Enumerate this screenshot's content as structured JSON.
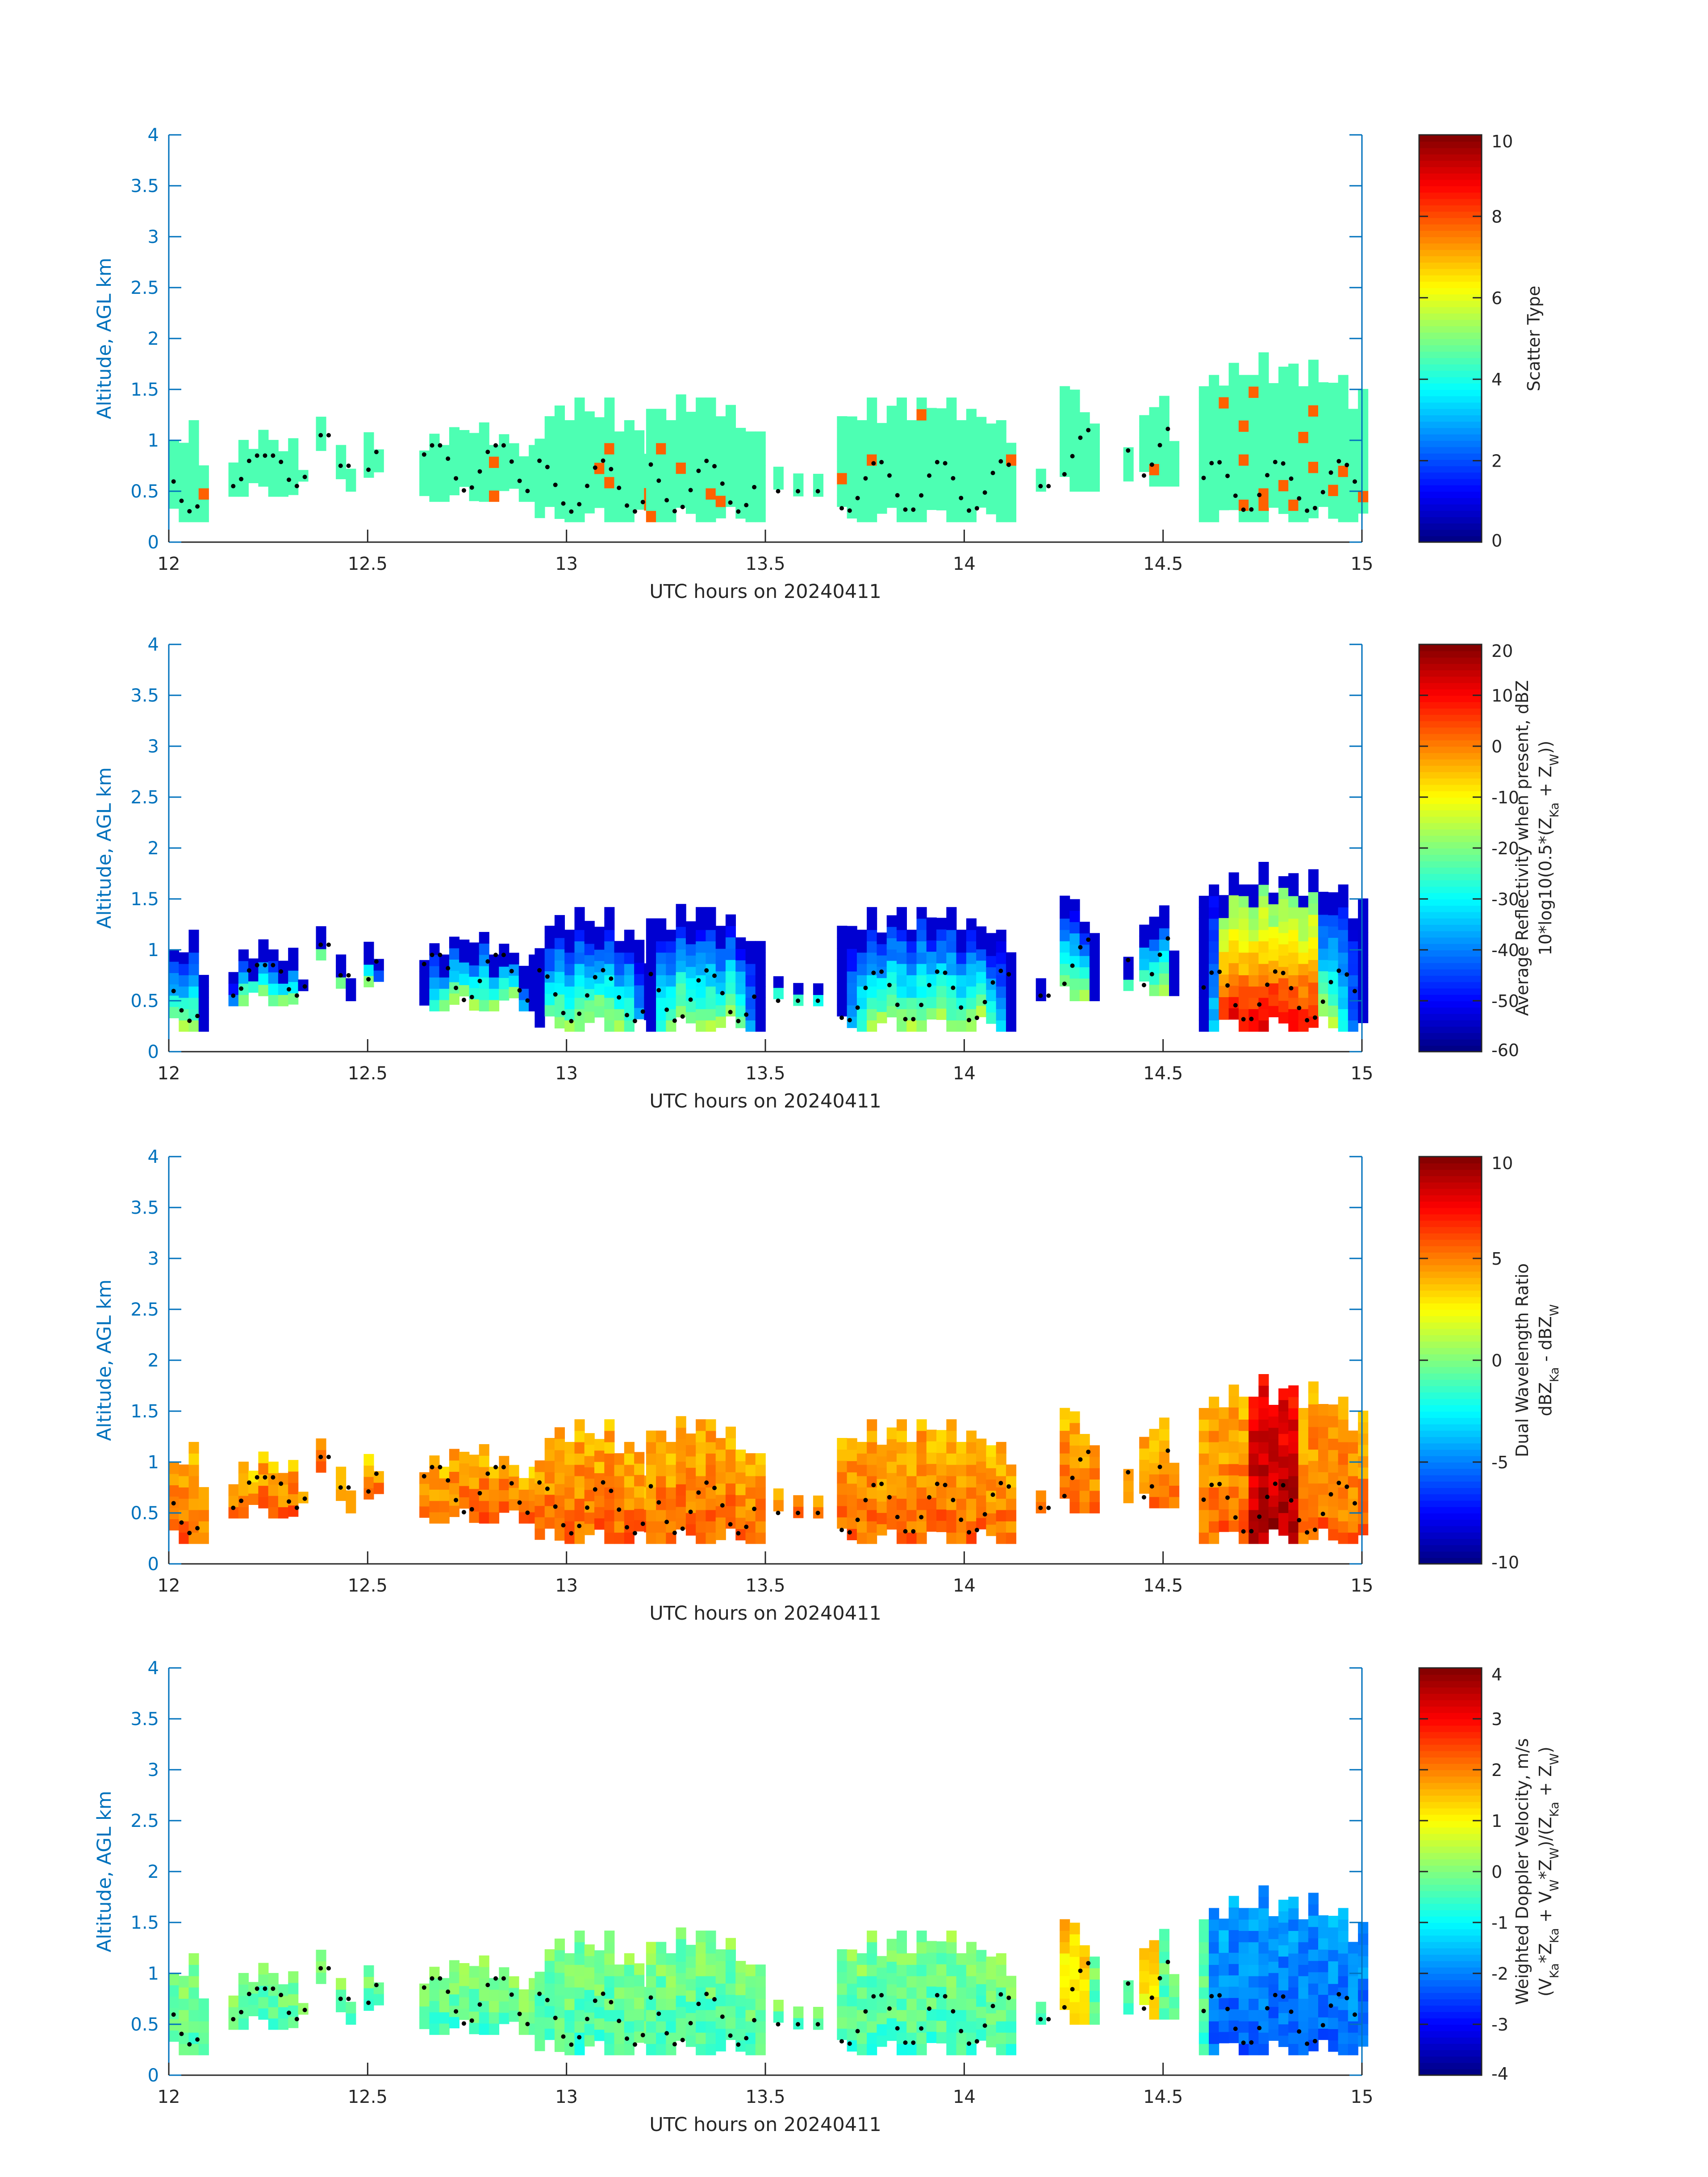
{
  "chart_data": [
    {
      "type": "heatmap",
      "xlabel": "UTC hours on 20240411",
      "ylabel": "Altitude, AGL km",
      "xlim": [
        12,
        15
      ],
      "ylim": [
        0,
        4
      ],
      "xticks": [
        12,
        12.5,
        13,
        13.5,
        14,
        14.5,
        15
      ],
      "yticks": [
        0,
        0.5,
        1,
        1.5,
        2,
        2.5,
        3,
        3.5,
        4
      ],
      "colorbar": {
        "label_lines": [
          "Scatter Type"
        ],
        "clim": [
          0,
          10
        ],
        "ticks": [
          0,
          2,
          4,
          6,
          8,
          10
        ],
        "colormap": "jet"
      }
    },
    {
      "type": "heatmap",
      "xlabel": "UTC hours on 20240411",
      "ylabel": "Altitude, AGL km",
      "xlim": [
        12,
        15
      ],
      "ylim": [
        0,
        4
      ],
      "xticks": [
        12,
        12.5,
        13,
        13.5,
        14,
        14.5,
        15
      ],
      "yticks": [
        0,
        0.5,
        1,
        1.5,
        2,
        2.5,
        3,
        3.5,
        4
      ],
      "colorbar": {
        "label_lines": [
          "Average Reflectivity when present, dBZ",
          "10*log10(0.5*(Z_Ka + Z_W))"
        ],
        "clim": [
          -60,
          20
        ],
        "ticks": [
          -60,
          -50,
          -40,
          -30,
          -20,
          -10,
          0,
          10,
          20
        ],
        "colormap": "jet"
      }
    },
    {
      "type": "heatmap",
      "xlabel": "UTC hours on 20240411",
      "ylabel": "Altitude, AGL km",
      "xlim": [
        12,
        15
      ],
      "ylim": [
        0,
        4
      ],
      "xticks": [
        12,
        12.5,
        13,
        13.5,
        14,
        14.5,
        15
      ],
      "yticks": [
        0,
        0.5,
        1,
        1.5,
        2,
        2.5,
        3,
        3.5,
        4
      ],
      "colorbar": {
        "label_lines": [
          "Dual Wavelength Ratio",
          "dBZ_Ka - dBZ_W"
        ],
        "clim": [
          -10,
          10
        ],
        "ticks": [
          -10,
          -5,
          0,
          5,
          10
        ],
        "colormap": "jet"
      }
    },
    {
      "type": "heatmap",
      "xlabel": "UTC hours on 20240411",
      "ylabel": "Altitude, AGL km",
      "xlim": [
        12,
        15
      ],
      "ylim": [
        0,
        4
      ],
      "xticks": [
        12,
        12.5,
        13,
        13.5,
        14,
        14.5,
        15
      ],
      "yticks": [
        0,
        0.5,
        1,
        1.5,
        2,
        2.5,
        3,
        3.5,
        4
      ],
      "colorbar": {
        "label_lines": [
          "Weighted Doppler Velocity, m/s",
          "(V_Ka*Z_Ka + V_W*Z_W)/(Z_Ka + Z_W)"
        ],
        "clim": [
          -4,
          4
        ],
        "ticks": [
          -4,
          -3,
          -2,
          -1,
          0,
          1,
          2,
          3,
          4
        ],
        "colormap": "jet"
      }
    }
  ],
  "cloud_segments": [
    {
      "t0": 12.0,
      "t1": 12.09,
      "bottom": 0.2,
      "top": 1.05
    },
    {
      "t0": 12.15,
      "t1": 12.35,
      "bottom": 0.45,
      "top": 0.95
    },
    {
      "t0": 12.37,
      "t1": 12.41,
      "bottom": 0.9,
      "top": 1.15
    },
    {
      "t0": 12.42,
      "t1": 12.47,
      "bottom": 0.5,
      "top": 0.85
    },
    {
      "t0": 12.49,
      "t1": 12.53,
      "bottom": 0.55,
      "top": 1.1
    },
    {
      "t0": 12.63,
      "t1": 12.92,
      "bottom": 0.4,
      "top": 1.05
    },
    {
      "t0": 12.92,
      "t1": 13.2,
      "bottom": 0.2,
      "top": 1.25
    },
    {
      "t0": 13.2,
      "t1": 13.48,
      "bottom": 0.2,
      "top": 1.3
    },
    {
      "t0": 13.52,
      "t1": 13.55,
      "bottom": 0.45,
      "top": 0.6
    },
    {
      "t0": 13.57,
      "t1": 13.59,
      "bottom": 0.45,
      "top": 0.6
    },
    {
      "t0": 13.62,
      "t1": 13.65,
      "bottom": 0.45,
      "top": 0.6
    },
    {
      "t0": 13.68,
      "t1": 14.13,
      "bottom": 0.2,
      "top": 1.3
    },
    {
      "t0": 14.18,
      "t1": 14.22,
      "bottom": 0.5,
      "top": 0.65
    },
    {
      "t0": 14.24,
      "t1": 14.32,
      "bottom": 0.5,
      "top": 1.45
    },
    {
      "t0": 14.4,
      "t1": 14.42,
      "bottom": 0.6,
      "top": 1.0
    },
    {
      "t0": 14.44,
      "t1": 14.53,
      "bottom": 0.55,
      "top": 1.3
    },
    {
      "t0": 14.59,
      "t1": 15.0,
      "bottom": 0.2,
      "top": 1.65
    }
  ]
}
